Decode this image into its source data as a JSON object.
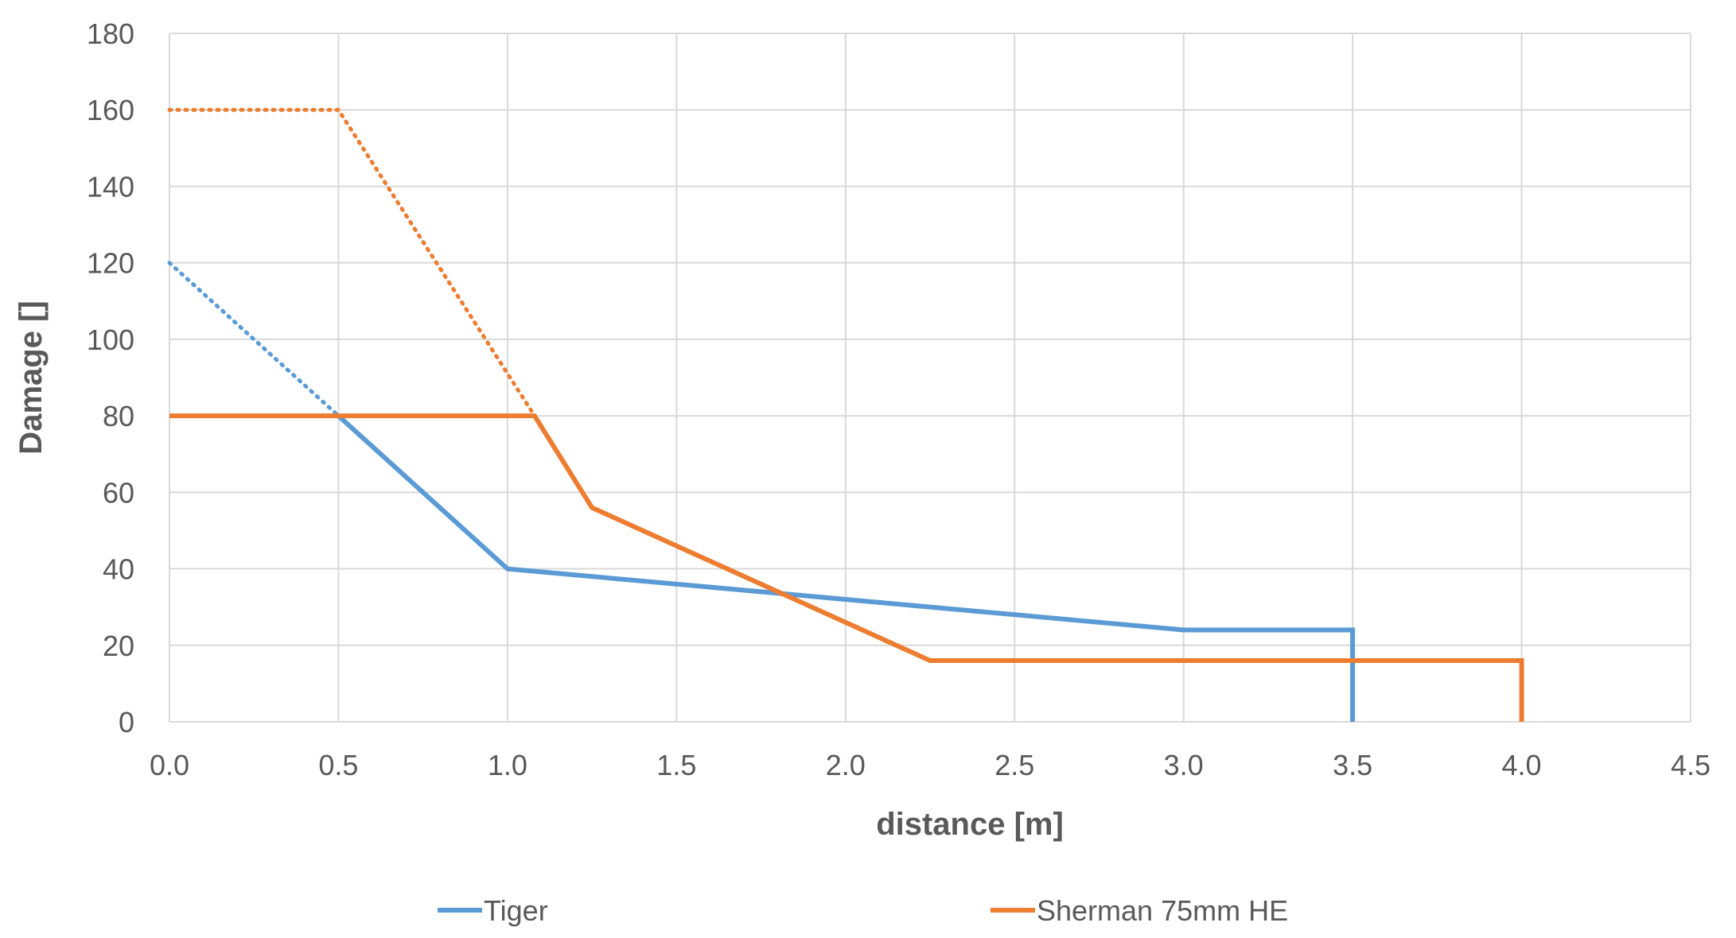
{
  "chart_data": {
    "type": "line",
    "title": "",
    "xlabel": "distance [m]",
    "ylabel": "Damage []",
    "xlim": [
      0,
      4.5
    ],
    "ylim": [
      0,
      180
    ],
    "xticks": [
      0,
      0.5,
      1.0,
      1.5,
      2.0,
      2.5,
      3.0,
      3.5,
      4.0,
      4.5
    ],
    "xtick_labels": [
      "0.0",
      "0.5",
      "1.0",
      "1.5",
      "2.0",
      "2.5",
      "3.0",
      "3.5",
      "4.0",
      "4.5"
    ],
    "yticks": [
      0,
      20,
      40,
      60,
      80,
      100,
      120,
      140,
      160,
      180
    ],
    "ytick_labels": [
      "0",
      "20",
      "40",
      "60",
      "80",
      "100",
      "120",
      "140",
      "160",
      "180"
    ],
    "grid": true,
    "legend_position": "bottom",
    "series": [
      {
        "name": "Tiger",
        "color": "#5b9bd5",
        "points": [
          [
            0.5,
            80
          ],
          [
            1.0,
            40
          ],
          [
            3.0,
            24
          ],
          [
            3.5,
            24
          ],
          [
            3.5,
            0
          ]
        ],
        "dotted_points": [
          [
            0.0,
            120
          ],
          [
            0.5,
            80
          ]
        ]
      },
      {
        "name": "Sherman 75mm HE",
        "color": "#ed7d31",
        "points": [
          [
            0.0,
            80
          ],
          [
            1.08,
            80
          ],
          [
            1.25,
            56
          ],
          [
            2.25,
            16
          ],
          [
            4.0,
            16
          ],
          [
            4.0,
            0
          ]
        ],
        "dotted_points": [
          [
            0.0,
            160
          ],
          [
            0.5,
            160
          ],
          [
            1.08,
            80
          ]
        ]
      }
    ]
  }
}
